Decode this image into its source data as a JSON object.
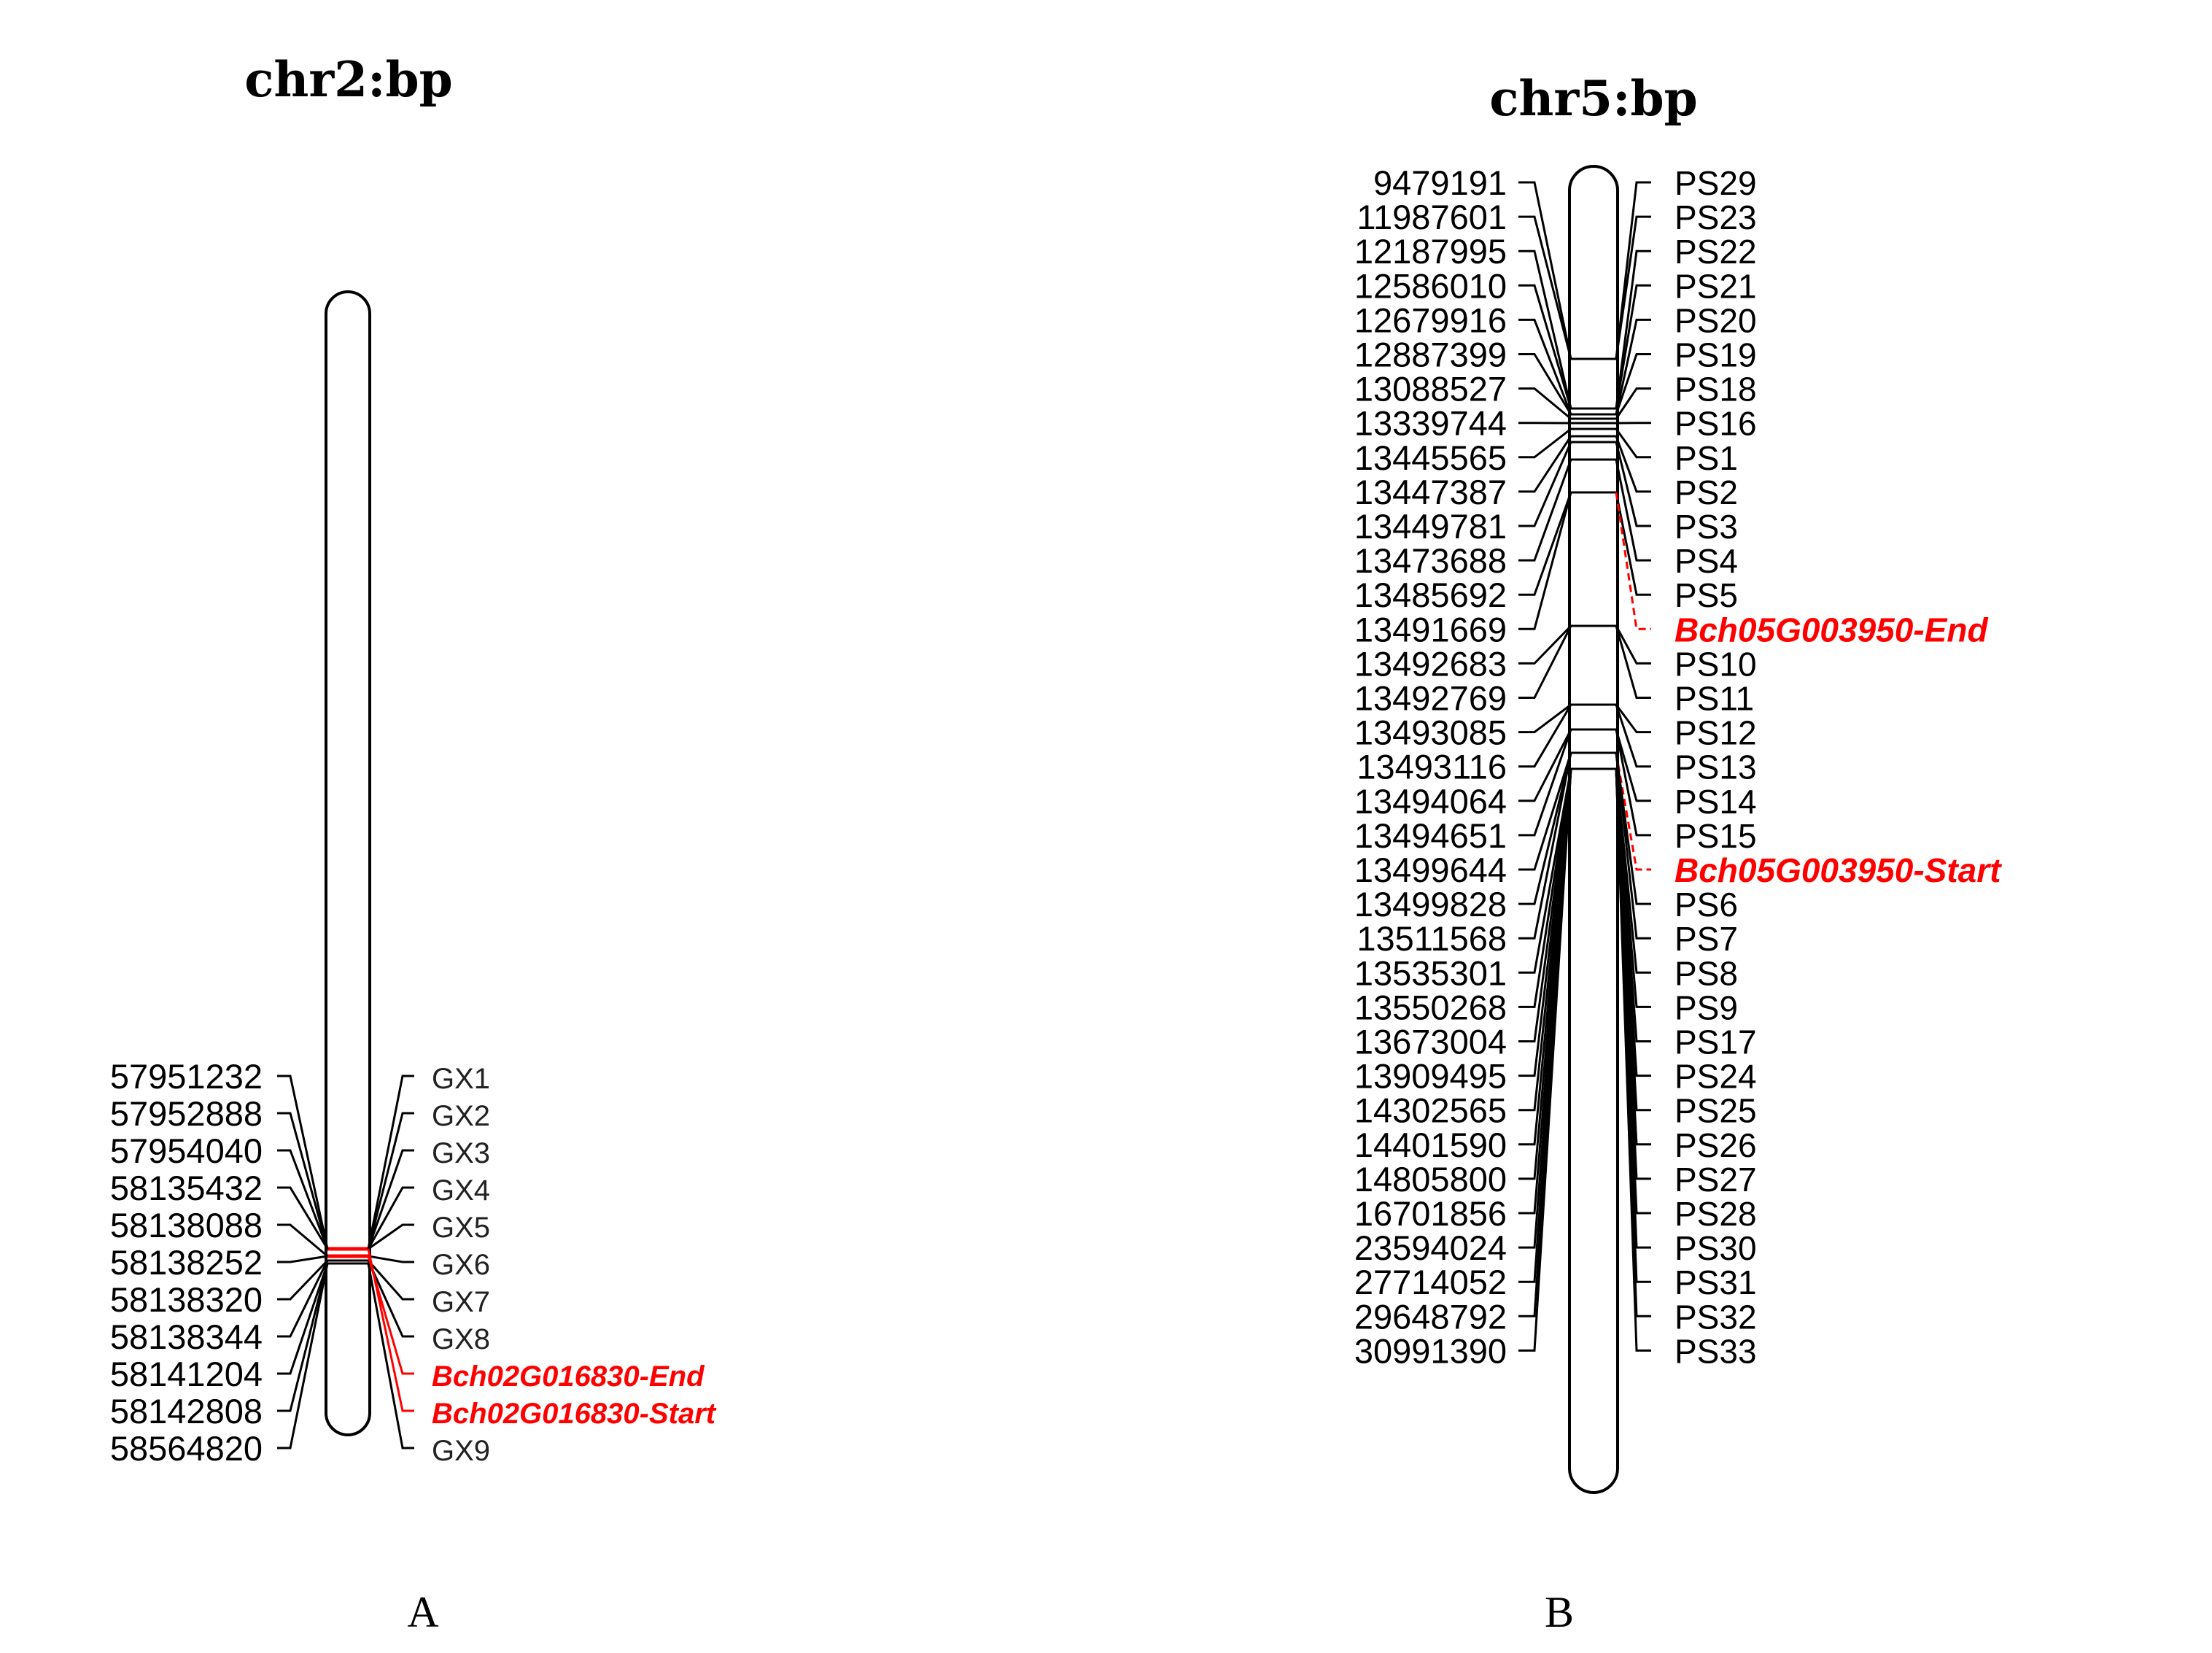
{
  "panels": [
    {
      "id": "A",
      "title": "chr2:bp",
      "caption": "A",
      "positions": [
        "57951232",
        "57952888",
        "57954040",
        "58135432",
        "58138088",
        "58138252",
        "58138320",
        "58138344",
        "58141204",
        "58142808",
        "58564820"
      ],
      "markers": [
        {
          "name": "GX1",
          "gene": false
        },
        {
          "name": "GX2",
          "gene": false
        },
        {
          "name": "GX3",
          "gene": false
        },
        {
          "name": "GX4",
          "gene": false
        },
        {
          "name": "GX5",
          "gene": false
        },
        {
          "name": "GX6",
          "gene": false
        },
        {
          "name": "GX7",
          "gene": false
        },
        {
          "name": "GX8",
          "gene": false
        },
        {
          "name": "Bch02G016830-End",
          "gene": true
        },
        {
          "name": "Bch02G016830-Start",
          "gene": true
        },
        {
          "name": "GX9",
          "gene": false
        }
      ]
    },
    {
      "id": "B",
      "title": "chr5:bp",
      "caption": "B",
      "positions": [
        "9479191",
        "11987601",
        "12187995",
        "12586010",
        "12679916",
        "12887399",
        "13088527",
        "13339744",
        "13445565",
        "13447387",
        "13449781",
        "13473688",
        "13485692",
        "13491669",
        "13492683",
        "13492769",
        "13493085",
        "13493116",
        "13494064",
        "13494651",
        "13499644",
        "13499828",
        "13511568",
        "13535301",
        "13550268",
        "13673004",
        "13909495",
        "14302565",
        "14401590",
        "14805800",
        "16701856",
        "23594024",
        "27714052",
        "29648792",
        "30991390"
      ],
      "markers": [
        {
          "name": "PS29",
          "gene": false
        },
        {
          "name": "PS23",
          "gene": false
        },
        {
          "name": "PS22",
          "gene": false
        },
        {
          "name": "PS21",
          "gene": false
        },
        {
          "name": "PS20",
          "gene": false
        },
        {
          "name": "PS19",
          "gene": false
        },
        {
          "name": "PS18",
          "gene": false
        },
        {
          "name": "PS16",
          "gene": false
        },
        {
          "name": "PS1",
          "gene": false
        },
        {
          "name": "PS2",
          "gene": false
        },
        {
          "name": "PS3",
          "gene": false
        },
        {
          "name": "PS4",
          "gene": false
        },
        {
          "name": "PS5",
          "gene": false
        },
        {
          "name": "Bch05G003950-End",
          "gene": true
        },
        {
          "name": "PS10",
          "gene": false
        },
        {
          "name": "PS11",
          "gene": false
        },
        {
          "name": "PS12",
          "gene": false
        },
        {
          "name": "PS13",
          "gene": false
        },
        {
          "name": "PS14",
          "gene": false
        },
        {
          "name": "PS15",
          "gene": false
        },
        {
          "name": "Bch05G003950-Start",
          "gene": true
        },
        {
          "name": "PS6",
          "gene": false
        },
        {
          "name": "PS7",
          "gene": false
        },
        {
          "name": "PS8",
          "gene": false
        },
        {
          "name": "PS9",
          "gene": false
        },
        {
          "name": "PS17",
          "gene": false
        },
        {
          "name": "PS24",
          "gene": false
        },
        {
          "name": "PS25",
          "gene": false
        },
        {
          "name": "PS26",
          "gene": false
        },
        {
          "name": "PS27",
          "gene": false
        },
        {
          "name": "PS28",
          "gene": false
        },
        {
          "name": "PS30",
          "gene": false
        },
        {
          "name": "PS31",
          "gene": false
        },
        {
          "name": "PS32",
          "gene": false
        },
        {
          "name": "PS33",
          "gene": false
        }
      ]
    }
  ],
  "colors": {
    "line": "#000000",
    "gene": "#ff0000",
    "chromosome_fill": "#ffffff"
  }
}
